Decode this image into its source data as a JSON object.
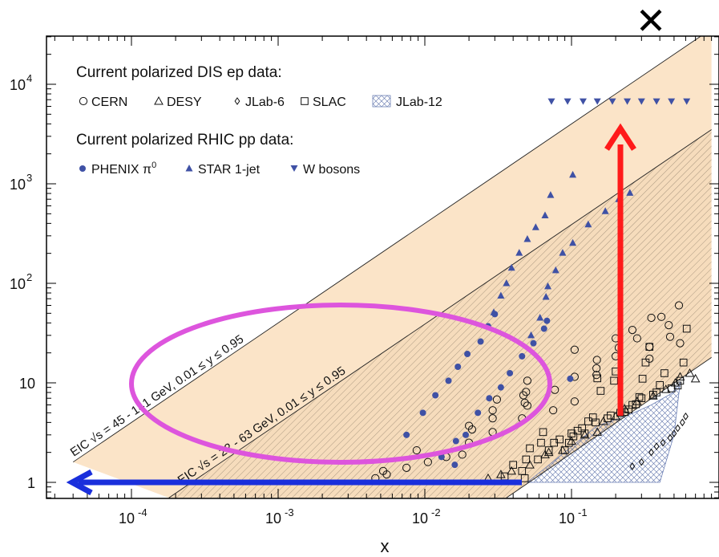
{
  "chart_data": {
    "type": "scatter",
    "xlabel": "x",
    "xscale": "log",
    "yscale": "log",
    "xlim": [
      3e-05,
      0.9
    ],
    "ylim": [
      0.7,
      30000
    ],
    "x_ticks": [
      {
        "value": 0.0001,
        "base": "10",
        "exp": "-4"
      },
      {
        "value": 0.001,
        "base": "10",
        "exp": "-3"
      },
      {
        "value": 0.01,
        "base": "10",
        "exp": "-2"
      },
      {
        "value": 0.1,
        "base": "10",
        "exp": "-1"
      }
    ],
    "y_ticks": [
      {
        "value": 1,
        "label": "1",
        "exp": ""
      },
      {
        "value": 10,
        "label": "10",
        "exp": ""
      },
      {
        "value": 100,
        "label": "10",
        "exp": "2"
      },
      {
        "value": 1000,
        "label": "10",
        "exp": "3"
      },
      {
        "value": 10000,
        "label": "10",
        "exp": "4"
      }
    ],
    "legend": {
      "dis_title": "Current polarized DIS ep data:",
      "dis_entries": [
        {
          "name": "CERN",
          "symbol": "circle"
        },
        {
          "name": "DESY",
          "symbol": "triangle-open"
        },
        {
          "name": "JLab-6",
          "symbol": "diamond"
        },
        {
          "name": "SLAC",
          "symbol": "square"
        },
        {
          "name": "JLab-12",
          "symbol": "hatched-box"
        }
      ],
      "rhic_title": "Current polarized RHIC pp data:",
      "rhic_entries": [
        {
          "name": "PHENIX π",
          "sup": "0",
          "symbol": "filled-circle"
        },
        {
          "name": "STAR 1-jet",
          "symbol": "filled-triangle"
        },
        {
          "name": "W bosons",
          "symbol": "filled-triangle-down"
        }
      ]
    },
    "bands": [
      {
        "label": "EIC √s = 45 - 141 GeV, 0.01 ≤ y ≤ 0.95",
        "lower_edge": [
          [
            0.00018,
            0.7
          ],
          [
            0.9,
            3500
          ]
        ],
        "upper_edge": [
          [
            4e-05,
            1.6
          ],
          [
            0.9,
            36000
          ]
        ],
        "color": "#fbe4c8"
      },
      {
        "label": "EIC √s = 22 - 63 GeV, 0.01 ≤ y ≤ 0.95",
        "lower_edge": [
          [
            0.036,
            0.7
          ],
          [
            0.9,
            18
          ]
        ],
        "upper_edge": [
          [
            0.00018,
            0.7
          ],
          [
            0.9,
            3500
          ]
        ],
        "color": "#f6dcbc",
        "hatched": true
      }
    ],
    "series": [
      {
        "name": "CERN",
        "symbol": "circle",
        "points": [
          [
            0.0046,
            1.1
          ],
          [
            0.0052,
            1.3
          ],
          [
            0.0055,
            1.2
          ],
          [
            0.0075,
            1.4
          ],
          [
            0.0088,
            2.1
          ],
          [
            0.0105,
            1.6
          ],
          [
            0.014,
            1.8
          ],
          [
            0.018,
            1.9
          ],
          [
            0.02,
            3.7
          ],
          [
            0.021,
            3.4
          ],
          [
            0.02,
            2.5
          ],
          [
            0.029,
            4.4
          ],
          [
            0.029,
            5.3
          ],
          [
            0.029,
            3.2
          ],
          [
            0.031,
            6.8
          ],
          [
            0.046,
            4.4
          ],
          [
            0.047,
            7.5
          ],
          [
            0.048,
            6.3
          ],
          [
            0.05,
            10.5
          ],
          [
            0.049,
            8.1
          ],
          [
            0.05,
            5.9
          ],
          [
            0.075,
            5.3
          ],
          [
            0.077,
            8.5
          ],
          [
            0.105,
            6.5
          ],
          [
            0.105,
            11.5
          ],
          [
            0.105,
            21.5
          ],
          [
            0.148,
            14
          ],
          [
            0.148,
            12
          ],
          [
            0.149,
            17
          ],
          [
            0.2,
            28
          ],
          [
            0.2,
            18.5
          ],
          [
            0.21,
            22.5
          ],
          [
            0.26,
            34
          ],
          [
            0.28,
            28
          ],
          [
            0.34,
            17.5
          ],
          [
            0.34,
            23
          ],
          [
            0.35,
            45
          ],
          [
            0.41,
            46
          ],
          [
            0.46,
            38
          ],
          [
            0.47,
            29
          ],
          [
            0.54,
            60
          ],
          [
            0.55,
            25
          ]
        ]
      },
      {
        "name": "SLAC",
        "symbol": "square",
        "points": [
          [
            0.035,
            1.15
          ],
          [
            0.046,
            1.3
          ],
          [
            0.048,
            1.1
          ],
          [
            0.04,
            1.5
          ],
          [
            0.049,
            1.7
          ],
          [
            0.052,
            2.2
          ],
          [
            0.059,
            1.7
          ],
          [
            0.062,
            2.5
          ],
          [
            0.064,
            3.2
          ],
          [
            0.07,
            2.1
          ],
          [
            0.076,
            2.5
          ],
          [
            0.083,
            2.7
          ],
          [
            0.09,
            2.1
          ],
          [
            0.096,
            2.5
          ],
          [
            0.1,
            3.1
          ],
          [
            0.103,
            2.9
          ],
          [
            0.11,
            3.3
          ],
          [
            0.118,
            3.5
          ],
          [
            0.123,
            3.1
          ],
          [
            0.13,
            4.1
          ],
          [
            0.14,
            4.5
          ],
          [
            0.146,
            4.0
          ],
          [
            0.15,
            11.1
          ],
          [
            0.158,
            8.3
          ],
          [
            0.176,
            4.4
          ],
          [
            0.185,
            4.7
          ],
          [
            0.195,
            10.5
          ],
          [
            0.2,
            13
          ],
          [
            0.215,
            5.0
          ],
          [
            0.23,
            5.1
          ],
          [
            0.245,
            5.4
          ],
          [
            0.26,
            6.0
          ],
          [
            0.275,
            6.1
          ],
          [
            0.29,
            7.2
          ],
          [
            0.3,
            7.0
          ],
          [
            0.305,
            11
          ],
          [
            0.32,
            16
          ],
          [
            0.34,
            23
          ],
          [
            0.36,
            7.6
          ],
          [
            0.38,
            8.0
          ],
          [
            0.4,
            9.5
          ],
          [
            0.43,
            12.5
          ],
          [
            0.48,
            8.8
          ],
          [
            0.53,
            9.4
          ],
          [
            0.55,
            10.5
          ],
          [
            0.58,
            16
          ],
          [
            0.61,
            35
          ]
        ]
      },
      {
        "name": "DESY",
        "symbol": "triangle-open",
        "points": [
          [
            0.027,
            1.1
          ],
          [
            0.033,
            1.2
          ],
          [
            0.039,
            1.3
          ],
          [
            0.052,
            1.5
          ],
          [
            0.066,
            1.9
          ],
          [
            0.07,
            2.0
          ],
          [
            0.087,
            2.1
          ],
          [
            0.1,
            2.6
          ],
          [
            0.123,
            3.0
          ],
          [
            0.15,
            3.2
          ],
          [
            0.165,
            4.1
          ],
          [
            0.2,
            4.6
          ],
          [
            0.23,
            5.5
          ],
          [
            0.28,
            6.5
          ],
          [
            0.36,
            7.4
          ],
          [
            0.44,
            8.6
          ],
          [
            0.51,
            10
          ],
          [
            0.55,
            11.5
          ],
          [
            0.64,
            12.5
          ],
          [
            0.7,
            11
          ]
        ]
      },
      {
        "name": "JLab-6",
        "symbol": "diamond",
        "points": [
          [
            0.26,
            1.45
          ],
          [
            0.3,
            1.6
          ],
          [
            0.35,
            2.0
          ],
          [
            0.38,
            2.3
          ],
          [
            0.42,
            2.5
          ],
          [
            0.47,
            2.8
          ],
          [
            0.5,
            3.1
          ],
          [
            0.53,
            3.5
          ],
          [
            0.57,
            4.0
          ],
          [
            0.6,
            4.6
          ]
        ]
      },
      {
        "name": "PHENIX π0",
        "symbol": "filled-circle",
        "points": [
          [
            0.0075,
            3.0
          ],
          [
            0.0097,
            5.0
          ],
          [
            0.0118,
            7.5
          ],
          [
            0.0145,
            10.5
          ],
          [
            0.0168,
            14.5
          ],
          [
            0.0195,
            19.5
          ],
          [
            0.024,
            26
          ],
          [
            0.027,
            37
          ],
          [
            0.03,
            49
          ],
          [
            0.013,
            1.8
          ],
          [
            0.0163,
            2.6
          ],
          [
            0.019,
            3.0
          ],
          [
            0.023,
            5.0
          ],
          [
            0.0275,
            7.0
          ],
          [
            0.033,
            9.0
          ],
          [
            0.038,
            12.5
          ],
          [
            0.046,
            18.5
          ],
          [
            0.055,
            25
          ],
          [
            0.065,
            35
          ],
          [
            0.068,
            42
          ],
          [
            0.098,
            11
          ],
          [
            0.016,
            1.5
          ]
        ]
      },
      {
        "name": "STAR 1-jet",
        "symbol": "filled-triangle",
        "points": [
          [
            0.0295,
            51
          ],
          [
            0.033,
            75
          ],
          [
            0.036,
            100
          ],
          [
            0.039,
            143
          ],
          [
            0.044,
            202
          ],
          [
            0.05,
            278
          ],
          [
            0.057,
            365
          ],
          [
            0.066,
            480
          ],
          [
            0.072,
            770
          ],
          [
            0.102,
            1230
          ],
          [
            0.053,
            30
          ],
          [
            0.061,
            45
          ],
          [
            0.067,
            73
          ],
          [
            0.069,
            93
          ],
          [
            0.078,
            135
          ],
          [
            0.087,
            202
          ],
          [
            0.102,
            254
          ],
          [
            0.13,
            390
          ],
          [
            0.17,
            530
          ],
          [
            0.21,
            700
          ],
          [
            0.25,
            810
          ]
        ]
      },
      {
        "name": "W bosons",
        "symbol": "filled-triangle-down",
        "points": [
          [
            0.073,
            6700
          ],
          [
            0.094,
            6700
          ],
          [
            0.12,
            6700
          ],
          [
            0.15,
            6700
          ],
          [
            0.19,
            6700
          ],
          [
            0.24,
            6700
          ],
          [
            0.3,
            6700
          ],
          [
            0.38,
            6700
          ],
          [
            0.48,
            6700
          ],
          [
            0.61,
            6700
          ]
        ]
      }
    ],
    "jlab12_region": [
      [
        0.05,
        1.0
      ],
      [
        0.15,
        3.7
      ],
      [
        0.25,
        4.8
      ],
      [
        0.35,
        6.0
      ],
      [
        0.48,
        7.8
      ],
      [
        0.55,
        10
      ],
      [
        0.5,
        3.0
      ],
      [
        0.4,
        1.0
      ]
    ],
    "annotations": {
      "red_arrow": {
        "x": 0.2,
        "from_y": 4.5,
        "to_y": 3800,
        "color": "#ff1a1a"
      },
      "blue_arrow": {
        "y": 1.0,
        "from_x": 0.047,
        "to_x": 4e-05,
        "color": "#1a2fdc"
      },
      "magenta_ellipse": {
        "center": [
          0.0028,
          10
        ],
        "color": "#dd55dd"
      },
      "x_mark": {
        "text": "✕",
        "x": 0.15,
        "color": "#000000"
      }
    }
  }
}
